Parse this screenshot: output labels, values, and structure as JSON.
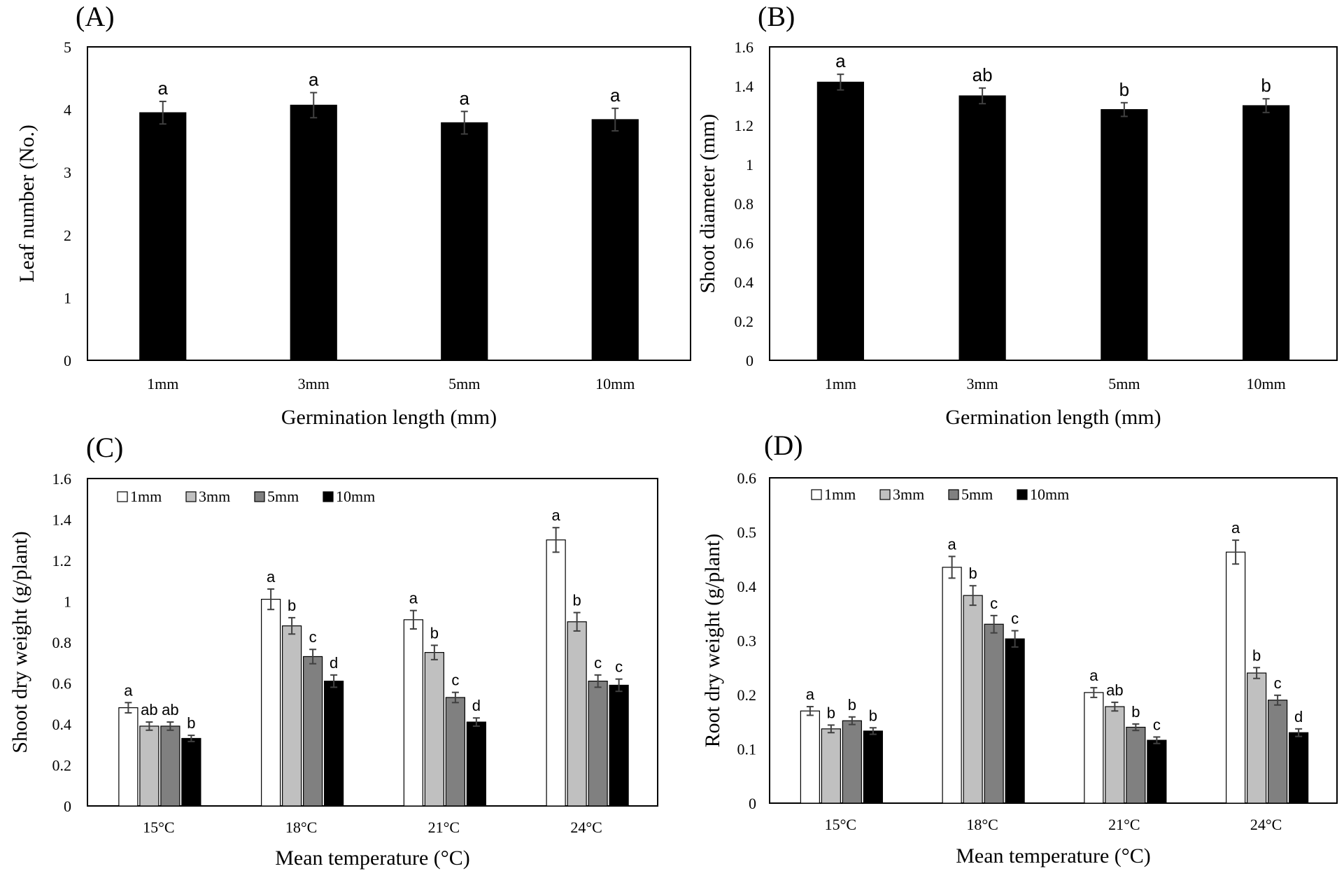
{
  "figure": {
    "colors": {
      "axis": "#000000",
      "errorbar": "#404040",
      "series": {
        "1mm": "#ffffff",
        "3mm": "#c0c0c0",
        "5mm": "#808080",
        "10mm": "#000000"
      }
    }
  },
  "chart_data": [
    {
      "panel": "(A)",
      "type": "bar",
      "xlabel": "Germination length (mm)",
      "ylabel": "Leaf number (No.)",
      "categories": [
        "1mm",
        "3mm",
        "5mm",
        "10mm"
      ],
      "ylim": [
        0,
        5
      ],
      "yticks": [
        "0",
        "1",
        "2",
        "3",
        "4",
        "5"
      ],
      "grid": false,
      "series": [
        {
          "values": [
            3.95,
            4.07,
            3.79,
            3.84
          ],
          "errors": [
            0.18,
            0.2,
            0.18,
            0.18
          ],
          "letters": [
            "a",
            "a",
            "a",
            "a"
          ],
          "color": "#000000"
        }
      ]
    },
    {
      "panel": "(B)",
      "type": "bar",
      "xlabel": "Germination length (mm)",
      "ylabel": "Shoot diameter (mm)",
      "categories": [
        "1mm",
        "3mm",
        "5mm",
        "10mm"
      ],
      "ylim": [
        0,
        1.6
      ],
      "yticks": [
        "0",
        "0.2",
        "0.4",
        "0.6",
        "0.8",
        "1",
        "1.2",
        "1.4",
        "1.6"
      ],
      "grid": false,
      "series": [
        {
          "values": [
            1.42,
            1.35,
            1.28,
            1.3
          ],
          "errors": [
            0.04,
            0.04,
            0.035,
            0.035
          ],
          "letters": [
            "a",
            "ab",
            "b",
            "b"
          ],
          "color": "#000000"
        }
      ]
    },
    {
      "panel": "(C)",
      "type": "bar",
      "xlabel": "Mean temperature (°C)",
      "ylabel": "Shoot dry weight (g/plant)",
      "categories": [
        "15°C",
        "18°C",
        "21°C",
        "24°C"
      ],
      "ylim": [
        0,
        1.6
      ],
      "yticks": [
        "0",
        "0.2",
        "0.4",
        "0.6",
        "0.8",
        "1",
        "1.2",
        "1.4",
        "1.6"
      ],
      "grid": false,
      "legend": "top-left",
      "series": [
        {
          "name": "1mm",
          "values": [
            0.48,
            1.01,
            0.91,
            1.3
          ],
          "errors": [
            0.025,
            0.05,
            0.045,
            0.06
          ],
          "letters": [
            "a",
            "a",
            "a",
            "a"
          ],
          "color": "#ffffff"
        },
        {
          "name": "3mm",
          "values": [
            0.39,
            0.88,
            0.75,
            0.9
          ],
          "errors": [
            0.02,
            0.04,
            0.035,
            0.045
          ],
          "letters": [
            "ab",
            "b",
            "b",
            "b"
          ],
          "color": "#c0c0c0"
        },
        {
          "name": "5mm",
          "values": [
            0.39,
            0.73,
            0.53,
            0.61
          ],
          "errors": [
            0.02,
            0.035,
            0.025,
            0.03
          ],
          "letters": [
            "ab",
            "c",
            "c",
            "c"
          ],
          "color": "#808080"
        },
        {
          "name": "10mm",
          "values": [
            0.33,
            0.61,
            0.41,
            0.59
          ],
          "errors": [
            0.015,
            0.03,
            0.02,
            0.03
          ],
          "letters": [
            "b",
            "d",
            "d",
            "c"
          ],
          "color": "#000000"
        }
      ]
    },
    {
      "panel": "(D)",
      "type": "bar",
      "xlabel": "Mean temperature (°C)",
      "ylabel": "Root dry weight (g/plant)",
      "categories": [
        "15°C",
        "18°C",
        "21°C",
        "24°C"
      ],
      "ylim": [
        0,
        0.6
      ],
      "yticks": [
        "0",
        "0.1",
        "0.2",
        "0.3",
        "0.4",
        "0.5",
        "0.6"
      ],
      "grid": false,
      "legend": "top-left",
      "series": [
        {
          "name": "1mm",
          "values": [
            0.17,
            0.435,
            0.204,
            0.463
          ],
          "errors": [
            0.008,
            0.02,
            0.009,
            0.022
          ],
          "letters": [
            "a",
            "a",
            "a",
            "a"
          ],
          "color": "#ffffff"
        },
        {
          "name": "3mm",
          "values": [
            0.137,
            0.383,
            0.178,
            0.24
          ],
          "errors": [
            0.007,
            0.018,
            0.008,
            0.01
          ],
          "letters": [
            "b",
            "b",
            "ab",
            "b"
          ],
          "color": "#c0c0c0"
        },
        {
          "name": "5mm",
          "values": [
            0.152,
            0.33,
            0.14,
            0.19
          ],
          "errors": [
            0.007,
            0.016,
            0.006,
            0.009
          ],
          "letters": [
            "b",
            "c",
            "b",
            "c"
          ],
          "color": "#808080"
        },
        {
          "name": "10mm",
          "values": [
            0.133,
            0.303,
            0.116,
            0.13
          ],
          "errors": [
            0.006,
            0.015,
            0.006,
            0.007
          ],
          "letters": [
            "b",
            "c",
            "c",
            "d"
          ],
          "color": "#000000"
        }
      ]
    }
  ]
}
